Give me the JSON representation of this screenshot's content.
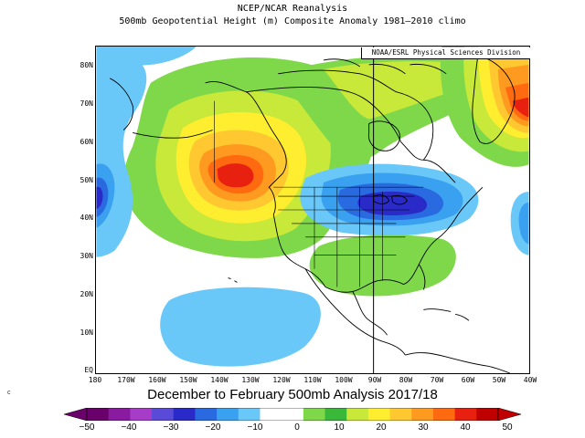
{
  "title_line1": "NCEP/NCAR Reanalysis",
  "title_line2": "500mb Geopotential Height (m) Composite Anomaly 1981–2010 climo",
  "credit": "NOAA/ESRL Physical Sciences Division",
  "caption": "December to February 500mb Analysis 2017/18",
  "small_mark": "c",
  "map": {
    "projection": "lat-lon",
    "lat_labels": [
      "80N",
      "70N",
      "60N",
      "50N",
      "40N",
      "30N",
      "20N",
      "10N",
      "EQ"
    ],
    "lon_labels": [
      "180",
      "170W",
      "160W",
      "150W",
      "140W",
      "130W",
      "120W",
      "110W",
      "100W",
      "90W",
      "80W",
      "70W",
      "60W",
      "50W",
      "40W"
    ],
    "anomaly_centers": [
      {
        "name": "ridge-northeast-pacific",
        "lat": 49,
        "lon": -140,
        "sign": "positive",
        "peak": 50
      },
      {
        "name": "trough-great-lakes",
        "lat": 43,
        "lon": -88,
        "sign": "negative",
        "peak": -15
      },
      {
        "name": "ridge-greenland",
        "lat": 67,
        "lon": -42,
        "sign": "positive",
        "peak": 50
      },
      {
        "name": "ridge-gulf-of-mexico",
        "lat": 28,
        "lon": -85,
        "sign": "positive",
        "peak": 10
      },
      {
        "name": "trough-central-pacific",
        "lat": 43,
        "lon": -178,
        "sign": "negative",
        "peak": -20
      },
      {
        "name": "trough-subtropical-pacific",
        "lat": 14,
        "lon": -143,
        "sign": "negative",
        "peak": -5
      },
      {
        "name": "trough-north-atlantic",
        "lat": 42,
        "lon": -42,
        "sign": "negative",
        "peak": -10
      },
      {
        "name": "trough-gulf-of-alaska-arctic",
        "lat": 80,
        "lon": -178,
        "sign": "negative",
        "peak": -5
      }
    ]
  },
  "colorbar": {
    "labels": [
      "−50",
      "−40",
      "−30",
      "−20",
      "−10",
      "0",
      "10",
      "20",
      "30",
      "40",
      "50"
    ],
    "colors": [
      "#6a006a",
      "#8a1aa0",
      "#a63cc8",
      "#5a4ad8",
      "#2a2ac8",
      "#2a6ae0",
      "#3aa0f0",
      "#6ac8f8",
      "#ffffff",
      "#ffffff",
      "#7ed84a",
      "#3ab83a",
      "#c8e83a",
      "#ffee30",
      "#ffc830",
      "#ff9a20",
      "#ff6a10",
      "#e82010",
      "#c00000"
    ]
  }
}
